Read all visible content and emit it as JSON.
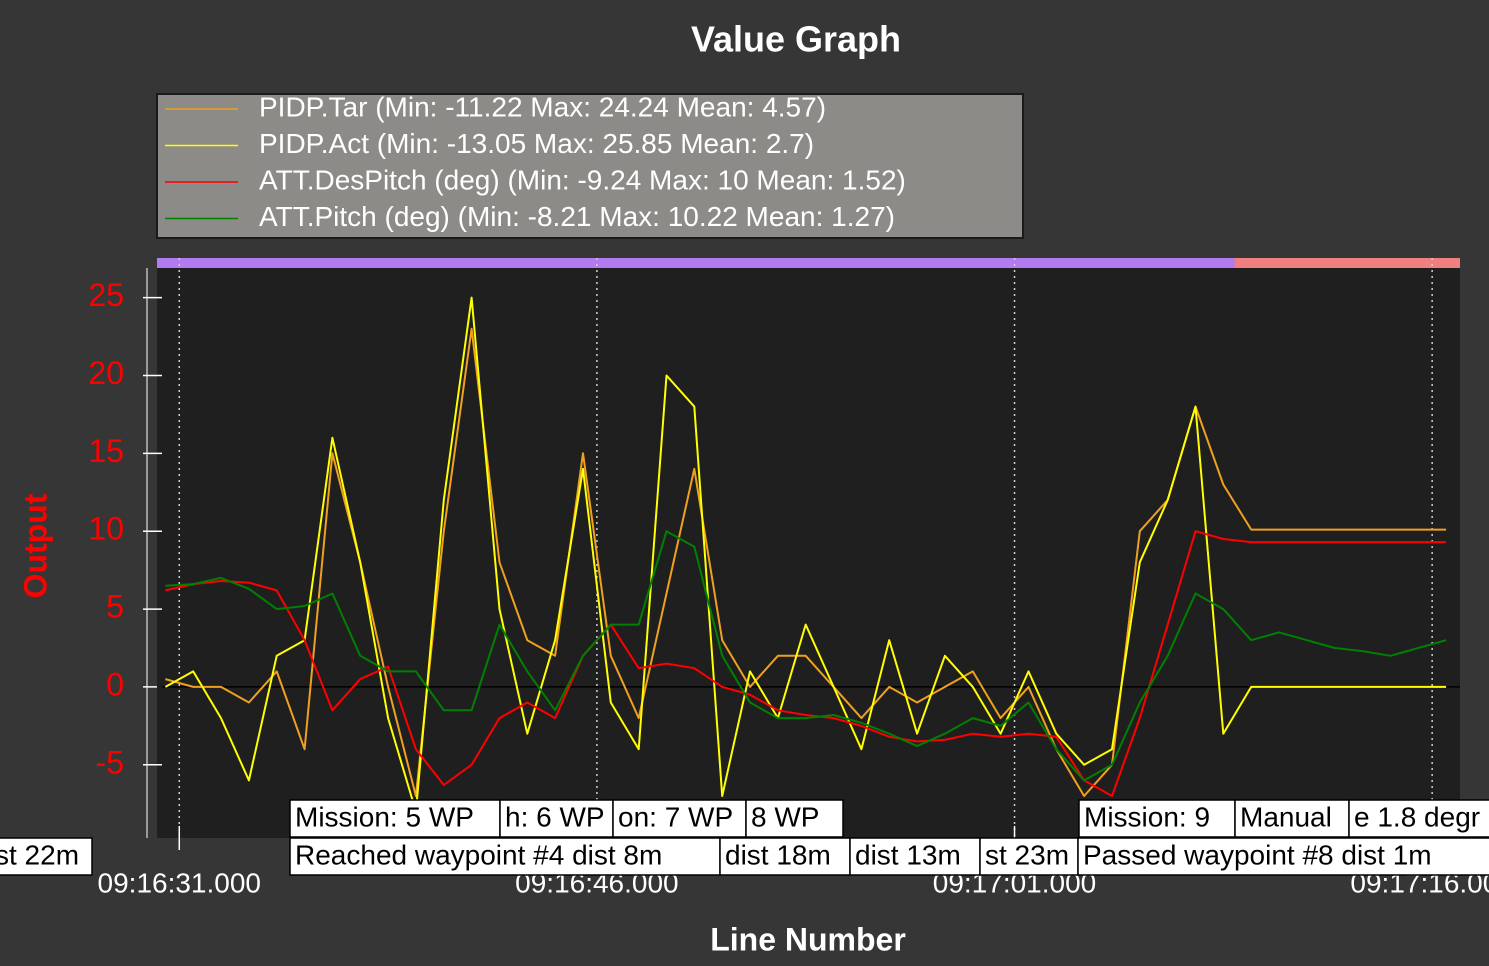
{
  "chart_data": {
    "type": "line",
    "title": "Value Graph",
    "x_label": "Line Number",
    "y_label": "Output",
    "x": [
      33390.5,
      33391.5,
      33392.5,
      33393.5,
      33394.5,
      33395.5,
      33396.5,
      33397.5,
      33398.5,
      33399.5,
      33400.5,
      33401.5,
      33402.5,
      33403.5,
      33404.5,
      33405.5,
      33406.5,
      33407.5,
      33408.5,
      33409.5,
      33410.5,
      33411.5,
      33412.5,
      33413.5,
      33414.5,
      33415.5,
      33416.5,
      33417.5,
      33418.5,
      33419.5,
      33420.5,
      33421.5,
      33422.5,
      33423.5,
      33424.5,
      33425.5,
      33426.5,
      33427.5,
      33428.5,
      33429.5,
      33430.5,
      33431.5,
      33432.5,
      33433.5,
      33434.5,
      33435.5,
      33436.5
    ],
    "series": [
      {
        "name": "PIDP.Tar (Min: -11.22 Max: 24.24 Mean: 4.57)",
        "color": "#f0a020",
        "values": [
          0.5,
          0,
          0,
          -1,
          1,
          -4,
          15,
          8,
          0,
          -7,
          10,
          23,
          8,
          3,
          2,
          15,
          2,
          -2,
          6,
          14,
          3,
          0,
          2,
          2,
          0,
          -2,
          0,
          -1,
          0,
          1,
          -2,
          0,
          -4,
          -7,
          -5,
          10,
          12,
          18,
          13,
          10.1,
          10.1,
          10.1,
          10.1,
          10.1,
          10.1,
          10.1,
          10.1
        ]
      },
      {
        "name": "PIDP.Act (Min: -13.05 Max: 25.85 Mean: 2.7)",
        "color": "#ffff00",
        "values": [
          0,
          1,
          -2,
          -6,
          2,
          3,
          16,
          8,
          -2,
          -8,
          12,
          25,
          5,
          -3,
          3,
          14,
          -1,
          -4,
          20,
          18,
          -7,
          1,
          -2,
          4,
          0,
          -4,
          3,
          -3,
          2,
          0,
          -3,
          1,
          -3,
          -5,
          -4,
          8,
          12,
          18,
          -3,
          0,
          0,
          0,
          0,
          0,
          0,
          0,
          0
        ]
      },
      {
        "name": "ATT.DesPitch (deg) (Min: -9.24 Max: 10 Mean: 1.52)",
        "color": "#ff0000",
        "values": [
          6.2,
          6.6,
          6.8,
          6.7,
          6.2,
          3,
          -1.5,
          0.5,
          1.3,
          -4,
          -6.3,
          -5,
          -2,
          -1,
          -2,
          2,
          4,
          1.2,
          1.5,
          1.2,
          0,
          -0.5,
          -1.5,
          -1.8,
          -2,
          -2.5,
          -3.2,
          -3.5,
          -3.4,
          -3,
          -3.2,
          -3,
          -3.2,
          -6,
          -7,
          -2,
          4,
          10,
          9.5,
          9.3,
          9.3,
          9.3,
          9.3,
          9.3,
          9.3,
          9.3,
          9.3
        ]
      },
      {
        "name": "ATT.Pitch (deg) (Min: -8.21 Max: 10.22 Mean: 1.27)",
        "color": "#008000",
        "values": [
          6.5,
          6.6,
          7,
          6.3,
          5,
          5.2,
          6,
          2,
          1,
          1,
          -1.5,
          -1.5,
          4,
          1,
          -1.5,
          2,
          4,
          4,
          10,
          9,
          2,
          -1,
          -2,
          -2,
          -1.8,
          -2.3,
          -3,
          -3.8,
          -3,
          -2,
          -2.5,
          -1,
          -4,
          -6,
          -5,
          -1,
          2,
          6,
          5,
          3,
          3.5,
          3,
          2.5,
          2.3,
          2,
          2.5,
          3
        ]
      }
    ],
    "xlim": [
      33390.2,
      33437.0
    ],
    "ylim": [
      -9.7,
      26.9
    ],
    "yticks": [
      -5,
      0,
      5,
      10,
      15,
      20,
      25
    ],
    "xticks": [
      {
        "value": 33391,
        "label": "09:16:31.000"
      },
      {
        "value": 33406,
        "label": "09:16:46.000"
      },
      {
        "value": 33421,
        "label": "09:17:01.000"
      },
      {
        "value": 33436,
        "label": "09:17:16.000"
      }
    ],
    "x_grid": true,
    "mode_bands": [
      {
        "color": "#b27cf0",
        "start": 33390.2,
        "end": 33428.9
      },
      {
        "color": "#f08080",
        "start": 33428.9,
        "end": 33437.0
      }
    ],
    "annotations": [
      "Mission: 5 WP",
      "h: 6 WP",
      "on: 7 WP",
      "8 WP",
      "Mission: 9",
      "Manual",
      "e 1.8 degr",
      "st 22m",
      "Reached waypoint #4 dist 8m",
      "dist 18m",
      "dist 13m",
      "st 23m",
      "Passed waypoint #8 dist 1m"
    ]
  }
}
